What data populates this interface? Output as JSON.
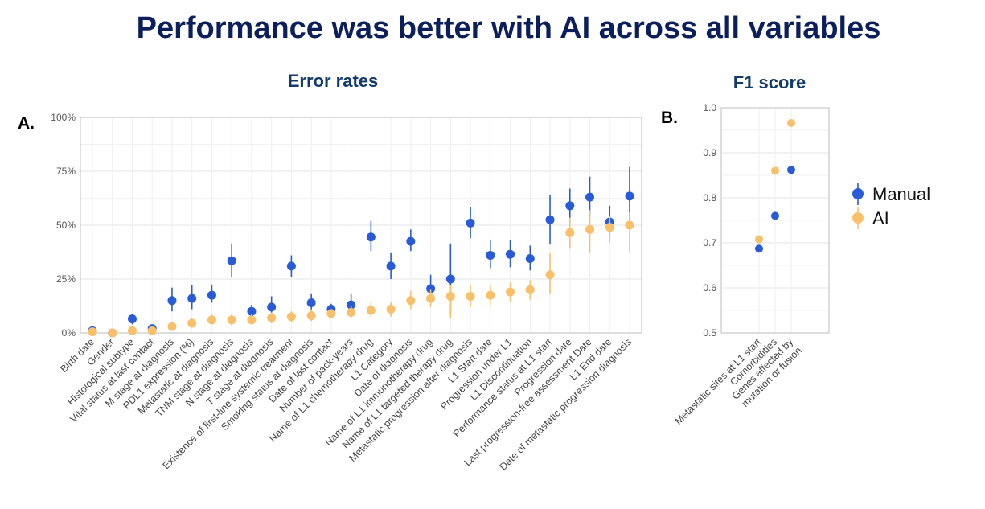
{
  "title": "Performance was better with AI across all variables",
  "colors": {
    "manual": "#2a5bd7",
    "ai": "#f8c06a",
    "grid": "#e6e6e6",
    "frame": "#bdbdbd"
  },
  "legend": [
    "Manual",
    "AI"
  ],
  "chart_data": [
    {
      "id": "A",
      "panel_label": "A.",
      "type": "scatter",
      "title": "Error rates",
      "xlabel": "",
      "ylabel": "",
      "ylim": [
        0,
        100
      ],
      "yticks": [
        "0%",
        "25%",
        "50%",
        "75%",
        "100%"
      ],
      "grid": true,
      "categories": [
        "Birth date",
        "Gender",
        "Histological subtype",
        "Vital status at last contact",
        "M stage at diagnosis",
        "PDL1 expression (%)",
        "Metastatic at diagnosis",
        "TNM stage at diagnosis",
        "N stage at diagnosis",
        "T stage at diagnosis",
        "Existence of first-line systemic treatment",
        "Smoking status at diagnosis",
        "Date of last contact",
        "Number of pack-years",
        "Name of L1 chemotherapy drug",
        "L1 Category",
        "Date of diagnosis",
        "Name of L1 immunotherapy drug",
        "Name of L1 targeted therapy drug",
        "Metastatic progression after diagnosis",
        "L1 Start date",
        "Progression under L1",
        "L1 Discontinuation",
        "Performance status at L1 start",
        "Progression date",
        "Last progression-free assessment Date",
        "L1 End date",
        "Date of metastatic progression diagnosis"
      ],
      "series": [
        {
          "name": "Manual",
          "values": [
            1,
            0,
            6.5,
            2,
            15,
            16,
            17.5,
            33.5,
            10,
            12,
            31,
            14,
            11,
            13,
            44.5,
            31,
            42.5,
            20.5,
            25,
            51,
            36,
            36.5,
            34.5,
            52.5,
            59,
            63,
            51.5,
            63.5
          ],
          "low": [
            0,
            0,
            4,
            0.5,
            10,
            11,
            14,
            26,
            7,
            8,
            26,
            10,
            8.5,
            9.5,
            38,
            25,
            38,
            15,
            9,
            44,
            30,
            30.5,
            29,
            41,
            51,
            54,
            44,
            50
          ],
          "high": [
            2,
            0,
            9,
            3,
            21,
            22,
            22,
            41.5,
            13,
            17,
            36,
            18,
            13.5,
            18,
            52,
            37,
            48,
            27,
            41.5,
            58.5,
            43,
            43,
            40.5,
            64,
            67,
            72.5,
            59,
            77
          ]
        },
        {
          "name": "AI",
          "values": [
            0.5,
            0,
            1,
            1,
            3,
            4.5,
            6,
            6,
            6,
            7,
            7.5,
            8,
            9,
            9.5,
            10.5,
            11,
            15,
            16,
            17,
            17,
            17.5,
            19,
            20,
            27,
            46.5,
            48,
            49,
            50
          ],
          "low": [
            0,
            0,
            0,
            0,
            1.5,
            2.5,
            4,
            3,
            4,
            4.5,
            5,
            5.5,
            7,
            6.5,
            7.5,
            7.5,
            11,
            12,
            7,
            12,
            13,
            14.5,
            15.5,
            18,
            39,
            37,
            42,
            37
          ],
          "high": [
            1.5,
            0,
            2,
            2,
            4.5,
            7,
            8.5,
            9,
            8.5,
            9.5,
            10,
            11,
            11,
            12.5,
            14,
            14.5,
            19.5,
            20,
            22,
            22,
            22,
            23.5,
            24.5,
            37,
            53.5,
            57,
            54,
            56
          ]
        }
      ]
    },
    {
      "id": "B",
      "panel_label": "B.",
      "type": "scatter",
      "title": "F1 score",
      "xlabel": "",
      "ylabel": "",
      "ylim": [
        0.5,
        1.0
      ],
      "yticks": [
        "0.5",
        "0.6",
        "0.7",
        "0.8",
        "0.9",
        "1.0"
      ],
      "grid": true,
      "categories": [
        "Metastatic sites at L1 start",
        "Comorbidities",
        "Genes affected by|mutation or fusion"
      ],
      "series": [
        {
          "name": "Manual",
          "values": [
            0.687,
            0.76,
            0.862
          ]
        },
        {
          "name": "AI",
          "values": [
            0.708,
            0.86,
            0.966
          ]
        }
      ]
    }
  ]
}
